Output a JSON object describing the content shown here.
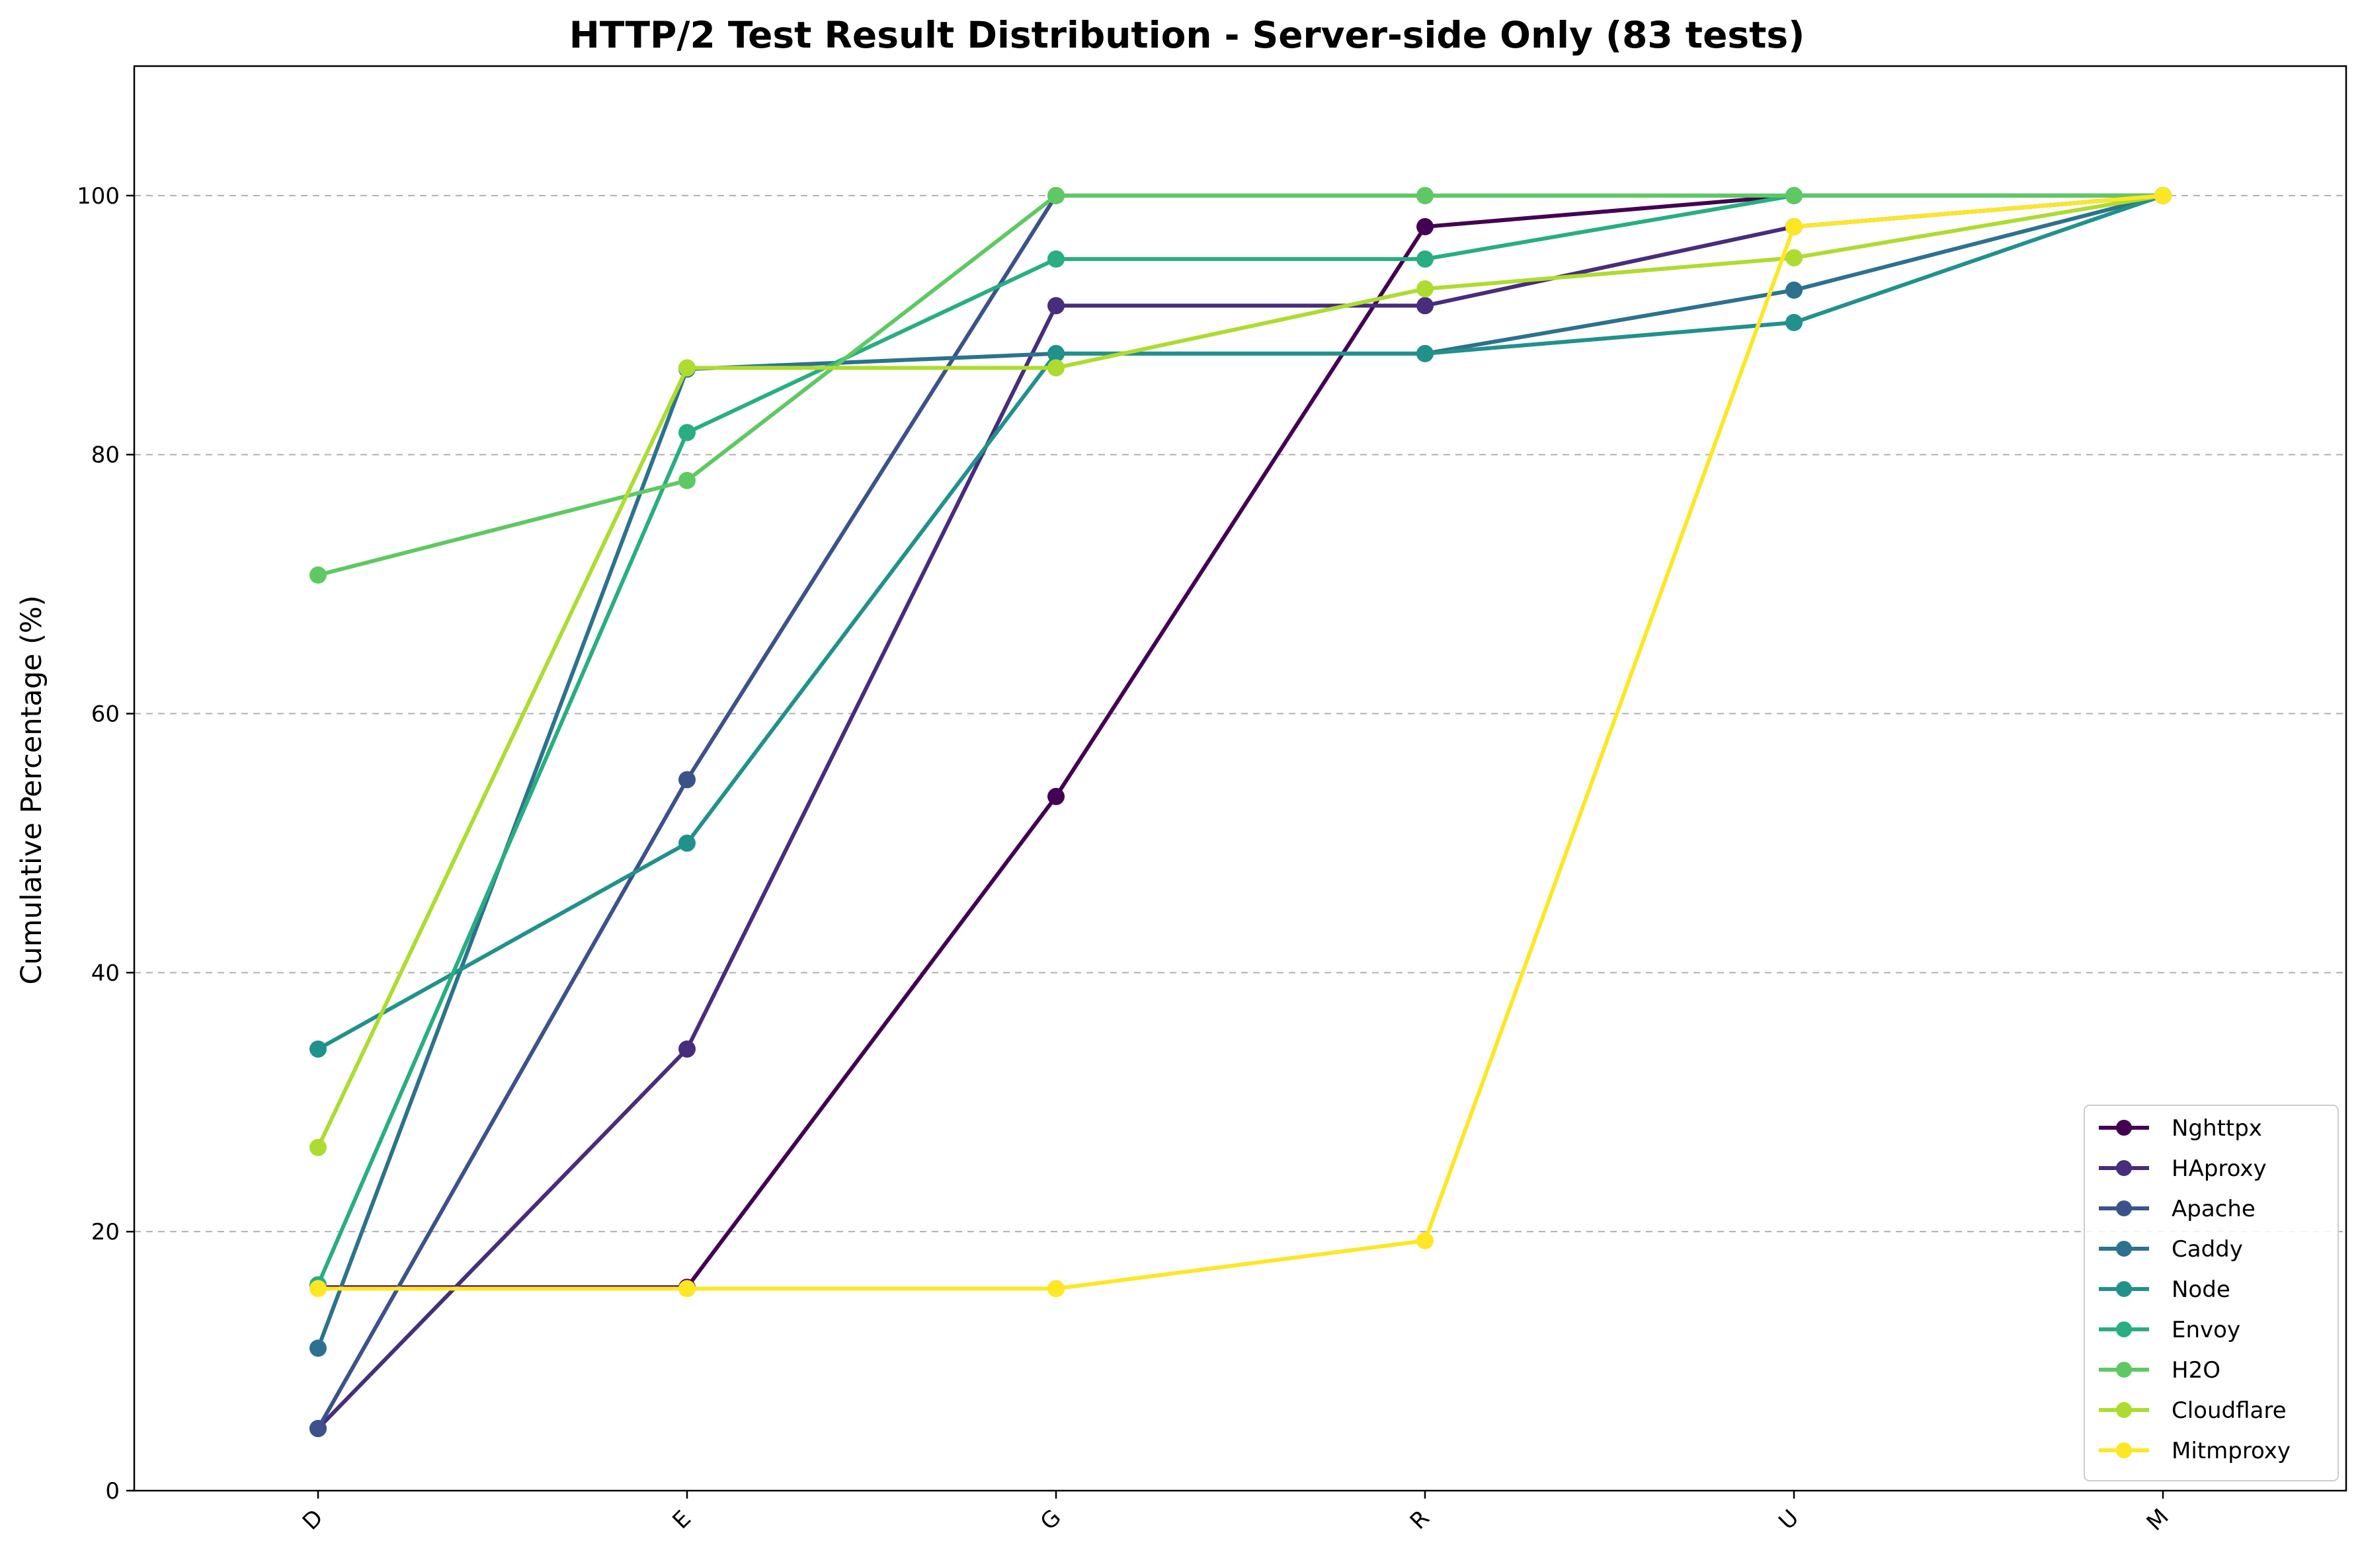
{
  "chart_data": {
    "type": "line",
    "title": "HTTP/2 Test Result Distribution - Server-side Only (83 tests)",
    "xlabel": "",
    "ylabel": "Cumulative Percentage (%)",
    "categories": [
      "D",
      "E",
      "G",
      "R",
      "U",
      "M"
    ],
    "ylim": [
      0,
      110
    ],
    "yticks": [
      0,
      20,
      40,
      60,
      80,
      100
    ],
    "grid": "horizontal-dashed",
    "legend_position": "lower-right",
    "series": [
      {
        "name": "Nghttpx",
        "color": "#440154",
        "values": [
          15.7,
          15.7,
          53.6,
          97.6,
          100,
          100
        ]
      },
      {
        "name": "HAproxy",
        "color": "#472d7b",
        "values": [
          4.8,
          34.1,
          91.5,
          91.5,
          97.6,
          100
        ]
      },
      {
        "name": "Apache",
        "color": "#3b528b",
        "values": [
          4.8,
          54.9,
          100,
          100,
          100,
          100
        ]
      },
      {
        "name": "Caddy",
        "color": "#2c728e",
        "values": [
          11.0,
          86.6,
          87.8,
          87.8,
          92.7,
          100
        ]
      },
      {
        "name": "Node",
        "color": "#21918c",
        "values": [
          34.1,
          50.0,
          87.8,
          87.8,
          90.2,
          100
        ]
      },
      {
        "name": "Envoy",
        "color": "#28ae80",
        "values": [
          15.9,
          81.7,
          95.1,
          95.1,
          100,
          100
        ]
      },
      {
        "name": "H2O",
        "color": "#5ec962",
        "values": [
          70.7,
          78.0,
          100,
          100,
          100,
          100
        ]
      },
      {
        "name": "Cloudflare",
        "color": "#addc30",
        "values": [
          26.5,
          86.7,
          86.7,
          92.8,
          95.2,
          100
        ]
      },
      {
        "name": "Mitmproxy",
        "color": "#fde725",
        "values": [
          15.6,
          15.6,
          15.6,
          19.3,
          97.6,
          100
        ]
      }
    ]
  }
}
